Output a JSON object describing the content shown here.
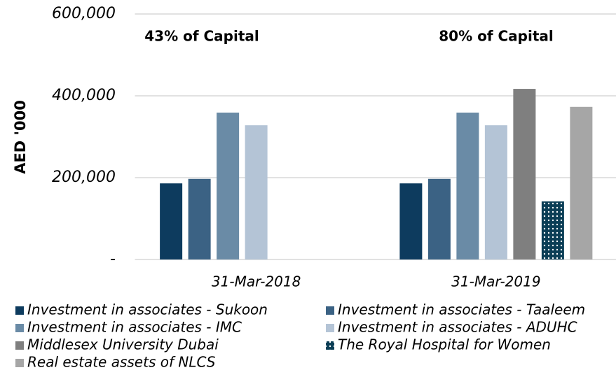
{
  "chart_data": {
    "type": "bar",
    "y_label": "AED '000",
    "annotations": [
      "43% of Capital",
      "80% of Capital"
    ],
    "categories": [
      "31-Mar-2018",
      "31-Mar-2019"
    ],
    "series": [
      {
        "name": "Investment in associates - Sukoon",
        "color": "#0d3b5e",
        "values": [
          186000,
          186000
        ]
      },
      {
        "name": "Investment in associates - Taaleem",
        "color": "#3b6284",
        "values": [
          197000,
          197000
        ]
      },
      {
        "name": "Investment in associates - IMC",
        "color": "#6a8ba6",
        "values": [
          359000,
          359000
        ]
      },
      {
        "name": "Investment in associates - ADUHC",
        "color": "#b4c4d6",
        "values": [
          328000,
          328000
        ]
      },
      {
        "name": "Middlesex University Dubai",
        "color": "#7f7f7f",
        "values": [
          null,
          417000
        ]
      },
      {
        "name": "The Royal Hospital for Women",
        "color": "#0a3d55",
        "pattern": "dots",
        "values": [
          null,
          142000
        ]
      },
      {
        "name": "Real estate assets of NLCS",
        "color": "#a6a6a6",
        "values": [
          null,
          373000
        ]
      }
    ],
    "ylim": [
      0,
      600000
    ],
    "yticks": [
      {
        "value": 0,
        "label": "-"
      },
      {
        "value": 200000,
        "label": "200,000"
      },
      {
        "value": 400000,
        "label": "400,000"
      },
      {
        "value": 600000,
        "label": "600,000"
      }
    ],
    "grid": true,
    "legend": "bottom"
  }
}
